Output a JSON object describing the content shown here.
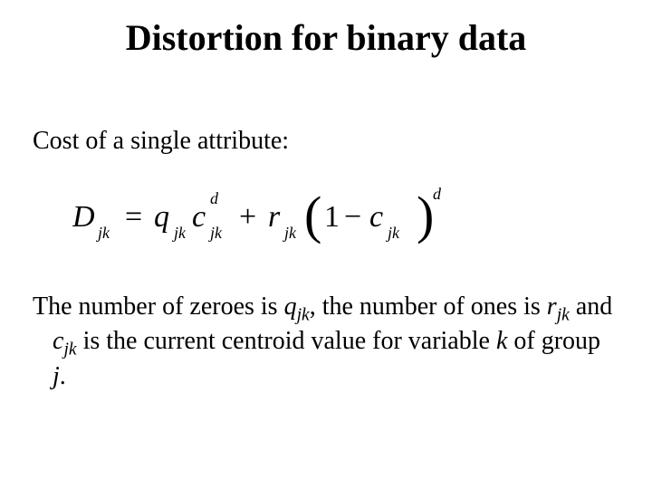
{
  "title": "Distortion for binary data",
  "subtitle": "Cost of a single attribute:",
  "equation": {
    "lhs_var": "D",
    "lhs_sub": "jk",
    "term1_var": "q",
    "term1_sub": "jk",
    "term1b_var": "c",
    "term1b_sub": "jk",
    "term1b_sup": "d",
    "paren_const": "1",
    "term2_var": "r",
    "term2_sub": "jk",
    "term3_var": "c",
    "term3_sub": "jk",
    "outer_sup": "d",
    "color": "#000000",
    "font_main_pt": 34,
    "font_sub_pt": 18
  },
  "body": {
    "pre1": "The number of zeroes is ",
    "var1": "q",
    "sub1": "jk",
    "mid1": ", the number of ones is ",
    "var2": "r",
    "sub2": "jk",
    "mid2": " and ",
    "var3": "c",
    "sub3": "jk",
    "mid3": " is the current centroid value for variable ",
    "var4": "k",
    "mid4": " of group ",
    "var5": "j",
    "end": "."
  },
  "colors": {
    "text": "#000000",
    "background": "#ffffff"
  },
  "fonts": {
    "title_pt": 40,
    "body_pt": 28
  }
}
